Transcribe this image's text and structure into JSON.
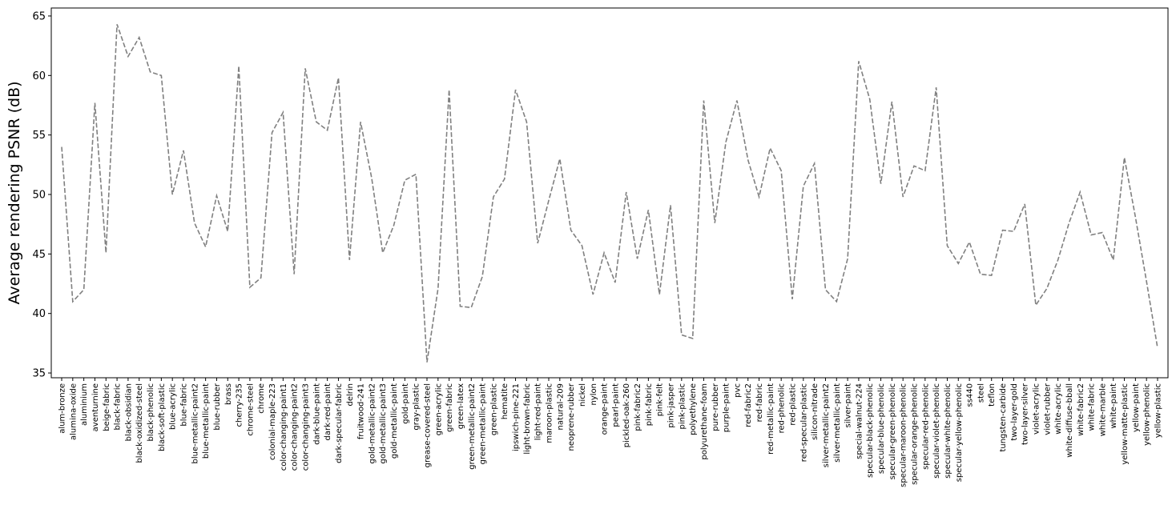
{
  "chart_data": {
    "type": "line",
    "ylabel": "Average rendering PSNR (dB)",
    "categories": [
      "alum-bronze",
      "alumina-oxide",
      "aluminium",
      "aventurnine",
      "beige-fabric",
      "black-fabric",
      "black-obsidian",
      "black-oxidized-steel",
      "black-phenolic",
      "black-soft-plastic",
      "blue-acrylic",
      "blue-fabric",
      "blue-metallic-paint2",
      "blue-metallic-paint",
      "blue-rubber",
      "brass",
      "cherry-235",
      "chrome-steel",
      "chrome",
      "colonial-maple-223",
      "color-changing-paint1",
      "color-changing-paint2",
      "color-changing-paint3",
      "dark-blue-paint",
      "dark-red-paint",
      "dark-specular-fabric",
      "delrin",
      "fruitwood-241",
      "gold-metallic-paint2",
      "gold-metallic-paint3",
      "gold-metallic-paint",
      "gold-paint",
      "gray-plastic",
      "grease-covered-steel",
      "green-acrylic",
      "green-fabric",
      "green-latex",
      "green-metallic-paint2",
      "green-metallic-paint",
      "green-plastic",
      "hematite",
      "ipswich-pine-221",
      "light-brown-fabric",
      "light-red-paint",
      "maroon-plastic",
      "natural-209",
      "neoprene-rubber",
      "nickel",
      "nylon",
      "orange-paint",
      "pearl-paint",
      "pickled-oak-260",
      "pink-fabric2",
      "pink-fabric",
      "pink-felt",
      "pink-jasper",
      "pink-plastic",
      "polyethylene",
      "polyurethane-foam",
      "pure-rubber",
      "purple-paint",
      "pvc",
      "red-fabric2",
      "red-fabric",
      "red-metallic-paint",
      "red-phenolic",
      "red-plastic",
      "red-specular-plastic",
      "silicon-nitrade",
      "silver-metallic-paint2",
      "silver-metallic-paint",
      "silver-paint",
      "special-walnut-224",
      "specular-black-phenolic",
      "specular-blue-phenolic",
      "specular-green-phenolic",
      "specular-maroon-phenolic",
      "specular-orange-phenolic",
      "specular-red-phenolic",
      "specular-violet-phenolic",
      "specular-white-phenolic",
      "specular-yellow-phenolic",
      "ss440",
      "steel",
      "teflon",
      "tungsten-carbide",
      "two-layer-gold",
      "two-layer-silver",
      "violet-acrylic",
      "violet-rubber",
      "white-acrylic",
      "white-diffuse-bball",
      "white-fabric2",
      "white-fabric",
      "white-marble",
      "white-paint",
      "yellow-matte-plastic",
      "yellow-paint",
      "yellow-phenolic",
      "yellow-plastic"
    ],
    "values": [
      54.0,
      41.0,
      42.0,
      57.7,
      45.1,
      64.3,
      61.6,
      63.2,
      60.3,
      60.0,
      50.0,
      53.7,
      47.6,
      45.6,
      49.9,
      46.9,
      60.8,
      42.2,
      43.0,
      55.2,
      56.9,
      43.3,
      60.6,
      56.1,
      55.4,
      59.8,
      44.5,
      56.1,
      51.4,
      45.1,
      47.4,
      51.2,
      51.7,
      35.9,
      42.1,
      58.8,
      40.6,
      40.5,
      43.1,
      49.8,
      51.3,
      58.8,
      56.1,
      45.9,
      49.5,
      53.0,
      47.0,
      45.7,
      41.6,
      45.1,
      42.6,
      50.2,
      44.6,
      48.7,
      41.6,
      49.1,
      38.2,
      37.9,
      57.9,
      47.6,
      54.4,
      57.9,
      52.9,
      49.8,
      53.9,
      52.0,
      41.2,
      50.7,
      52.6,
      42.0,
      41.0,
      44.6,
      61.2,
      58.0,
      50.9,
      57.8,
      49.8,
      52.4,
      52.0,
      59.0,
      45.7,
      44.2,
      46.0,
      43.3,
      43.2,
      47.0,
      46.9,
      49.2,
      40.7,
      42.1,
      44.5,
      47.6,
      50.2,
      46.6,
      46.8,
      44.5,
      53.1,
      48.1,
      42.7,
      37.1
    ],
    "color": "#808080",
    "line_style": "dashed",
    "ylim": [
      34.6,
      65.67
    ],
    "yticks": [
      35,
      40,
      45,
      50,
      55,
      60,
      65
    ]
  }
}
